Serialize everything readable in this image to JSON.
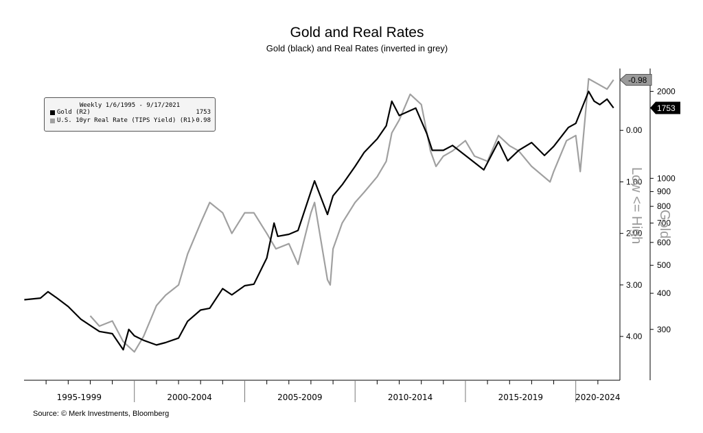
{
  "chart_data": {
    "type": "line",
    "title": "Gold and Real Rates",
    "subtitle": "Gold (black) and Real Rates (inverted in grey)",
    "source": "Source: © Merk Investments, Bloomberg",
    "legend": {
      "header": "Weekly 1/6/1995 - 9/17/2021",
      "placement": "top-left",
      "entries": [
        {
          "name": "Gold (R2)",
          "value": "1753",
          "color": "#000000"
        },
        {
          "name": "U.S. 10yr Real Rate (TIPS Yield) (R1)",
          "value": "-0.98",
          "color": "#a0a0a0"
        }
      ]
    },
    "x_categories": [
      "1995-1999",
      "2000-2004",
      "2005-2009",
      "2010-2014",
      "2015-2019",
      "2020-2024"
    ],
    "real_rate_axis": {
      "inverted": true,
      "range": [
        -1.2,
        4.85
      ],
      "ticks": [
        "0.00",
        "1.00",
        "2.00",
        "3.00",
        "4.00"
      ],
      "tick_values": [
        0,
        1,
        2,
        3,
        4
      ],
      "annotation": "Low <= High",
      "last_value_label": "-0.98"
    },
    "gold_axis": {
      "scale": "log",
      "range": [
        200,
        2400
      ],
      "ticks": [
        "2000",
        "1000",
        "900",
        "800",
        "700",
        "600",
        "500",
        "400",
        "300"
      ],
      "tick_values": [
        2000,
        1000,
        900,
        800,
        700,
        600,
        500,
        400,
        300
      ],
      "annotation": "Gold",
      "last_value_label": "1753"
    },
    "series": [
      {
        "name": "Gold (R2)",
        "axis": "gold",
        "color": "#000000",
        "x": [
          "1995-01-06",
          "1995-10-01",
          "1996-02-01",
          "1996-07-01",
          "1997-01-01",
          "1997-08-01",
          "1998-06-01",
          "1999-01-01",
          "1999-07-01",
          "1999-10-01",
          "2000-01-01",
          "2000-06-01",
          "2001-01-01",
          "2001-06-01",
          "2002-01-01",
          "2002-06-01",
          "2003-01-01",
          "2003-06-01",
          "2004-01-01",
          "2004-06-01",
          "2005-01-01",
          "2005-06-01",
          "2006-01-01",
          "2006-05-01",
          "2006-07-01",
          "2007-01-01",
          "2007-06-01",
          "2008-01-01",
          "2008-03-01",
          "2008-10-01",
          "2009-01-01",
          "2009-06-01",
          "2010-01-01",
          "2010-06-01",
          "2011-01-01",
          "2011-06-01",
          "2011-09-01",
          "2012-01-01",
          "2012-10-01",
          "2013-04-01",
          "2013-07-01",
          "2014-01-01",
          "2014-06-01",
          "2015-01-01",
          "2015-11-01",
          "2016-07-01",
          "2016-12-01",
          "2017-06-01",
          "2018-01-01",
          "2018-08-01",
          "2019-01-01",
          "2019-09-01",
          "2020-01-01",
          "2020-08-01",
          "2020-11-01",
          "2021-02-01",
          "2021-06-01",
          "2021-09-17"
        ],
        "values": [
          380,
          385,
          405,
          385,
          360,
          325,
          295,
          290,
          255,
          300,
          285,
          275,
          265,
          270,
          280,
          320,
          350,
          355,
          415,
          395,
          425,
          430,
          530,
          700,
          630,
          640,
          660,
          900,
          980,
          750,
          870,
          950,
          1100,
          1230,
          1370,
          1520,
          1850,
          1650,
          1750,
          1430,
          1250,
          1250,
          1300,
          1200,
          1070,
          1340,
          1150,
          1250,
          1330,
          1200,
          1290,
          1500,
          1550,
          2000,
          1850,
          1800,
          1880,
          1753
        ]
      },
      {
        "name": "U.S. 10yr Real Rate (TIPS Yield) (R1)",
        "axis": "real_rate",
        "color": "#a0a0a0",
        "x": [
          "1998-01-01",
          "1998-06-01",
          "1999-01-01",
          "1999-07-01",
          "2000-01-01",
          "2000-06-01",
          "2001-01-01",
          "2001-06-01",
          "2002-01-01",
          "2002-06-01",
          "2003-01-01",
          "2003-06-01",
          "2004-01-01",
          "2004-06-01",
          "2005-01-01",
          "2005-06-01",
          "2006-01-01",
          "2006-06-01",
          "2007-01-01",
          "2007-06-01",
          "2008-01-01",
          "2008-03-01",
          "2008-10-01",
          "2008-11-15",
          "2009-01-01",
          "2009-06-01",
          "2010-01-01",
          "2010-06-01",
          "2011-01-01",
          "2011-06-01",
          "2011-09-01",
          "2012-01-01",
          "2012-07-01",
          "2013-01-01",
          "2013-06-01",
          "2013-09-01",
          "2014-01-01",
          "2014-06-01",
          "2015-01-01",
          "2015-06-01",
          "2016-01-01",
          "2016-07-01",
          "2017-01-01",
          "2017-06-01",
          "2018-01-01",
          "2018-11-01",
          "2019-01-01",
          "2019-08-01",
          "2020-01-01",
          "2020-03-15",
          "2020-08-01",
          "2021-01-01",
          "2021-06-01",
          "2021-09-17"
        ],
        "values": [
          3.6,
          3.8,
          3.7,
          4.1,
          4.3,
          4.0,
          3.4,
          3.2,
          3.0,
          2.4,
          1.8,
          1.4,
          1.6,
          2.0,
          1.6,
          1.6,
          2.0,
          2.3,
          2.2,
          2.6,
          1.6,
          1.4,
          2.9,
          3.0,
          2.3,
          1.8,
          1.4,
          1.2,
          0.9,
          0.6,
          0.05,
          -0.2,
          -0.7,
          -0.5,
          0.4,
          0.7,
          0.5,
          0.4,
          0.2,
          0.5,
          0.6,
          0.1,
          0.3,
          0.4,
          0.7,
          1.0,
          0.8,
          0.2,
          0.1,
          0.8,
          -1.0,
          -0.9,
          -0.8,
          -0.98
        ]
      }
    ]
  }
}
